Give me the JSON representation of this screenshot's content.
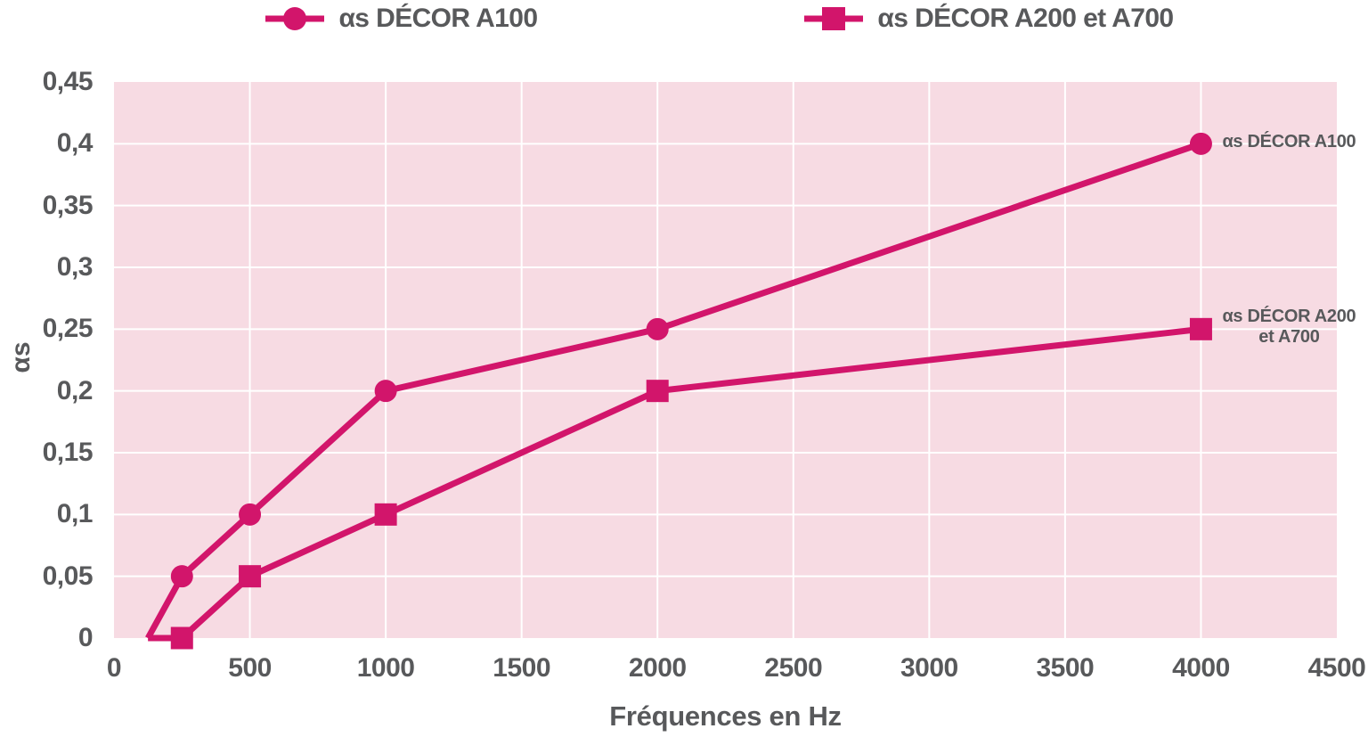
{
  "chart_data": {
    "type": "line",
    "title": "",
    "xlabel": "Fréquences en Hz",
    "ylabel": "αs",
    "xlim": [
      0,
      4500
    ],
    "ylim": [
      0,
      0.45
    ],
    "grid": true,
    "legend_position": "top",
    "x_ticks": [
      {
        "v": 0,
        "label": "0"
      },
      {
        "v": 500,
        "label": "500"
      },
      {
        "v": 1000,
        "label": "1000"
      },
      {
        "v": 1500,
        "label": "1500"
      },
      {
        "v": 2000,
        "label": "2000"
      },
      {
        "v": 2500,
        "label": "2500"
      },
      {
        "v": 3000,
        "label": "3000"
      },
      {
        "v": 3500,
        "label": "3500"
      },
      {
        "v": 4000,
        "label": "4000"
      },
      {
        "v": 4500,
        "label": "4500"
      }
    ],
    "y_ticks": [
      {
        "v": 0,
        "label": "0"
      },
      {
        "v": 0.05,
        "label": "0,05"
      },
      {
        "v": 0.1,
        "label": "0,1"
      },
      {
        "v": 0.15,
        "label": "0,15"
      },
      {
        "v": 0.2,
        "label": "0,2"
      },
      {
        "v": 0.25,
        "label": "0,25"
      },
      {
        "v": 0.3,
        "label": "0,3"
      },
      {
        "v": 0.35,
        "label": "0,35"
      },
      {
        "v": 0.4,
        "label": "0,4"
      },
      {
        "v": 0.45,
        "label": "0,45"
      }
    ],
    "series": [
      {
        "name": "αs DÉCOR A100",
        "marker": "circle",
        "color": "#D2156B",
        "x": [
          125,
          250,
          500,
          1000,
          2000,
          4000
        ],
        "y": [
          0,
          0.05,
          0.1,
          0.2,
          0.25,
          0.4
        ],
        "markers_at": [
          250,
          500,
          1000,
          2000,
          4000
        ]
      },
      {
        "name": "αs DÉCOR A200 et A700",
        "marker": "square",
        "color": "#D2156B",
        "x": [
          125,
          250,
          500,
          1000,
          2000,
          4000
        ],
        "y": [
          0,
          0,
          0.05,
          0.1,
          0.2,
          0.25
        ],
        "markers_at": [
          250,
          500,
          1000,
          2000,
          4000
        ]
      }
    ]
  },
  "legend": {
    "items": [
      {
        "label": "αs DÉCOR A100",
        "marker": "circle"
      },
      {
        "label": "αs DÉCOR A200 et A700",
        "marker": "square"
      }
    ]
  },
  "annotations": {
    "a100": "αs DÉCOR A100",
    "a200_line1": "αs DÉCOR A200",
    "a200_line2": "et A700"
  },
  "colors": {
    "series": "#D2156B",
    "plot_bg": "#F7DBE3",
    "grid": "#FFFFFF",
    "text": "#58595B"
  }
}
